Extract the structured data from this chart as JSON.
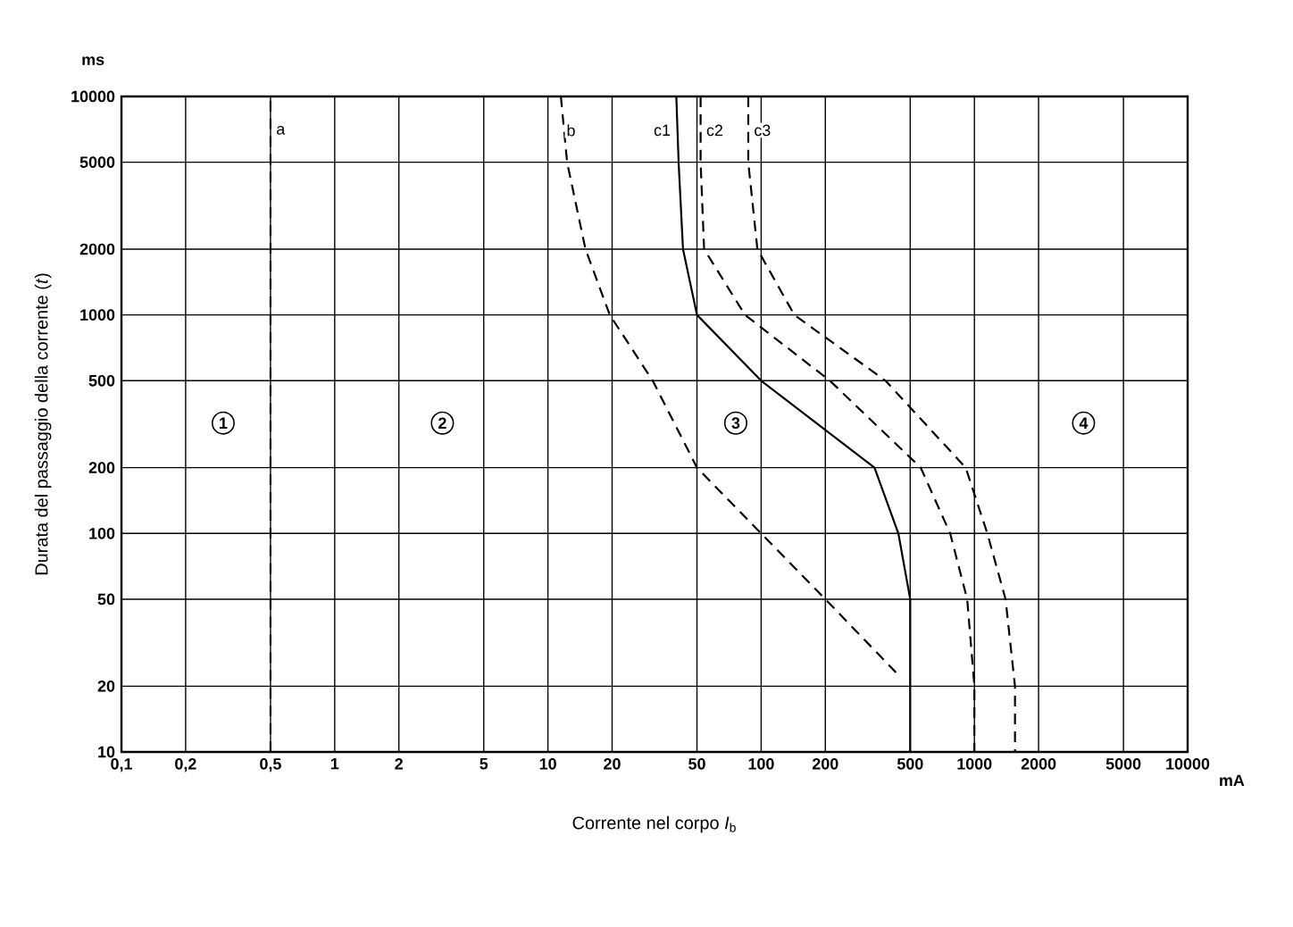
{
  "chart_data": {
    "type": "line",
    "xlabel": "Corrente nel corpo *I*$_{b}$",
    "ylabel": "Durata del passaggio della corrente (*t*)",
    "log": "xy",
    "grid": true,
    "legend": false,
    "marker": "none",
    "xlim": [
      0.1,
      10000
    ],
    "ylim": [
      10,
      10000
    ],
    "xticks": [
      {
        "value": 0.1,
        "label": "0,1"
      },
      {
        "value": 0.2,
        "label": "0,2"
      },
      {
        "value": 0.5,
        "label": "0,5"
      },
      1,
      2,
      5,
      10,
      20,
      50,
      100,
      200,
      500,
      1000,
      2000,
      5000,
      10000
    ],
    "yticks": [
      10,
      20,
      50,
      100,
      200,
      500,
      1000,
      2000,
      5000,
      10000
    ],
    "series": [
      {
        "name": "a",
        "color": "#000000",
        "line_style": "dashed",
        "x": [
          0.5,
          0.5
        ],
        "values": [
          10,
          10000
        ]
      },
      {
        "name": "b",
        "color": "#000000",
        "line_style": "dashed",
        "x": [
          11.5,
          12.3,
          15,
          19.5,
          31,
          50,
          100,
          200,
          450
        ],
        "values": [
          10000,
          5000,
          2000,
          1000,
          500,
          200,
          100,
          50,
          22
        ]
      },
      {
        "name": "c1",
        "color": "#000000",
        "line_style": "solid",
        "x": [
          40,
          41,
          43,
          50,
          100,
          340,
          440,
          500,
          500
        ],
        "values": [
          10000,
          5000,
          2000,
          1000,
          500,
          200,
          100,
          50,
          10
        ]
      },
      {
        "name": "c2",
        "color": "#000000",
        "line_style": "dashed",
        "x": [
          52,
          52,
          54,
          84,
          210,
          560,
          770,
          925,
          1000,
          1000
        ],
        "values": [
          10000,
          5000,
          2000,
          1000,
          500,
          200,
          100,
          50,
          20,
          10
        ]
      },
      {
        "name": "c3",
        "color": "#000000",
        "line_style": "dashed",
        "x": [
          87,
          87,
          96,
          143,
          383,
          910,
          1150,
          1400,
          1550,
          1550
        ],
        "values": [
          10000,
          5000,
          2000,
          1000,
          500,
          200,
          100,
          50,
          20,
          10
        ]
      }
    ],
    "annotations": [
      "ms",
      "mA",
      {
        "text": "1",
        "x": 0.3,
        "y": 320
      },
      {
        "text": "2",
        "x": 3.2,
        "y": 320
      },
      {
        "text": "3",
        "x": 76,
        "y": 320
      },
      {
        "text": "4",
        "x": 3250,
        "y": 320
      }
    ]
  }
}
